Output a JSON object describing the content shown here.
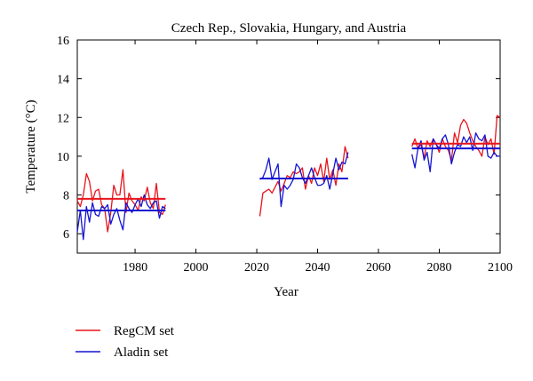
{
  "chart_data": {
    "type": "line",
    "title": "Czech Rep., Slovakia, Hungary, and Austria",
    "xlabel": "Year",
    "ylabel": "Temperature (°C)",
    "xlim": [
      1961,
      2100
    ],
    "ylim": [
      5,
      16
    ],
    "x_ticks": [
      1980,
      2000,
      2020,
      2040,
      2060,
      2080,
      2100
    ],
    "y_ticks": [
      6,
      8,
      10,
      12,
      14,
      16
    ],
    "grid": false,
    "legend_position": "bottom-left, outside plot",
    "series": [
      {
        "name": "RegCM set",
        "color": "#e8141c",
        "periods": [
          {
            "x": [
              1961,
              1962,
              1963,
              1964,
              1965,
              1966,
              1967,
              1968,
              1969,
              1970,
              1971,
              1972,
              1973,
              1974,
              1975,
              1976,
              1977,
              1978,
              1979,
              1980,
              1981,
              1982,
              1983,
              1984,
              1985,
              1986,
              1987,
              1988,
              1989,
              1990
            ],
            "y": [
              7.7,
              7.4,
              8.0,
              9.1,
              8.7,
              7.7,
              8.2,
              8.3,
              7.5,
              7.3,
              6.1,
              7.1,
              8.5,
              8.0,
              8.0,
              9.3,
              7.1,
              8.1,
              7.7,
              7.5,
              7.2,
              7.9,
              7.7,
              8.4,
              7.6,
              7.3,
              8.6,
              7.1,
              7.0,
              7.5
            ],
            "mean": 7.8
          },
          {
            "x": [
              2021,
              2022,
              2023,
              2024,
              2025,
              2026,
              2027,
              2028,
              2029,
              2030,
              2031,
              2032,
              2033,
              2034,
              2035,
              2036,
              2037,
              2038,
              2039,
              2040,
              2041,
              2042,
              2043,
              2044,
              2045,
              2046,
              2047,
              2048,
              2049,
              2050
            ],
            "y": [
              6.9,
              8.1,
              8.2,
              8.3,
              8.1,
              8.4,
              8.7,
              8.2,
              8.6,
              9.0,
              8.9,
              9.2,
              9.1,
              9.2,
              9.4,
              8.3,
              9.0,
              8.6,
              9.4,
              9.0,
              9.6,
              8.7,
              9.9,
              8.8,
              9.3,
              8.5,
              9.6,
              9.2,
              10.5,
              9.9
            ],
            "mean": 8.85
          },
          {
            "x": [
              2071,
              2072,
              2073,
              2074,
              2075,
              2076,
              2077,
              2078,
              2079,
              2080,
              2081,
              2082,
              2083,
              2084,
              2085,
              2086,
              2087,
              2088,
              2089,
              2090,
              2091,
              2092,
              2093,
              2094,
              2095,
              2096,
              2097,
              2098,
              2099,
              2100
            ],
            "y": [
              10.5,
              10.9,
              10.4,
              10.6,
              9.9,
              10.8,
              10.5,
              10.9,
              10.6,
              10.2,
              10.9,
              10.5,
              10.3,
              9.8,
              11.2,
              10.7,
              11.6,
              11.9,
              11.7,
              11.2,
              10.8,
              10.5,
              10.3,
              10.0,
              11.0,
              10.6,
              10.9,
              10.1,
              12.1,
              12.0
            ],
            "mean": 10.65
          }
        ]
      },
      {
        "name": "Aladin set",
        "color": "#1414d2",
        "periods": [
          {
            "x": [
              1961,
              1962,
              1963,
              1964,
              1965,
              1966,
              1967,
              1968,
              1969,
              1970,
              1971,
              1972,
              1973,
              1974,
              1975,
              1976,
              1977,
              1978,
              1979,
              1980,
              1981,
              1982,
              1983,
              1984,
              1985,
              1986,
              1987,
              1988,
              1989,
              1990
            ],
            "y": [
              6.1,
              7.2,
              5.7,
              7.4,
              6.6,
              7.6,
              7.0,
              6.9,
              7.4,
              7.3,
              7.5,
              6.5,
              7.0,
              7.3,
              6.7,
              6.2,
              7.6,
              7.3,
              7.1,
              7.5,
              7.8,
              7.4,
              8.0,
              7.5,
              7.3,
              7.6,
              7.7,
              6.8,
              7.4,
              7.3
            ],
            "mean": 7.2
          },
          {
            "x": [
              2021,
              2022,
              2023,
              2024,
              2025,
              2026,
              2027,
              2028,
              2029,
              2030,
              2031,
              2032,
              2033,
              2034,
              2035,
              2036,
              2037,
              2038,
              2039,
              2040,
              2041,
              2042,
              2043,
              2044,
              2045,
              2046,
              2047,
              2048,
              2049,
              2050
            ],
            "y": [
              8.8,
              8.9,
              9.3,
              9.9,
              8.8,
              9.2,
              9.6,
              7.4,
              8.5,
              8.3,
              8.5,
              8.8,
              9.6,
              9.4,
              8.9,
              8.6,
              9.0,
              9.4,
              8.9,
              8.5,
              8.5,
              8.6,
              9.0,
              8.3,
              9.1,
              9.9,
              9.3,
              9.7,
              9.6,
              10.2
            ],
            "mean": 8.85
          },
          {
            "x": [
              2071,
              2072,
              2073,
              2074,
              2075,
              2076,
              2077,
              2078,
              2079,
              2080,
              2081,
              2082,
              2083,
              2084,
              2085,
              2086,
              2087,
              2088,
              2089,
              2090,
              2091,
              2092,
              2093,
              2094,
              2095,
              2096,
              2097,
              2098,
              2099,
              2100
            ],
            "y": [
              10.1,
              9.4,
              10.4,
              10.8,
              9.8,
              10.2,
              9.2,
              10.9,
              10.6,
              10.4,
              10.9,
              11.1,
              10.6,
              9.6,
              10.2,
              10.6,
              10.5,
              11.0,
              10.7,
              11.0,
              10.3,
              11.2,
              10.9,
              10.8,
              11.1,
              10.0,
              9.9,
              10.2,
              10.0,
              10.0
            ],
            "mean": 10.4
          }
        ]
      }
    ],
    "legend": [
      {
        "label": "RegCM set",
        "color": "#e8141c"
      },
      {
        "label": "Aladin set",
        "color": "#1414d2"
      }
    ]
  }
}
